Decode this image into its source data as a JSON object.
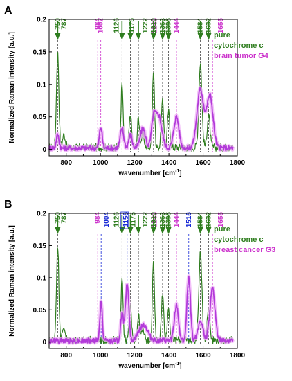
{
  "chart_data": [
    {
      "type": "line",
      "panel": "A",
      "xlabel": "wavenumber [cm",
      "xlabel_sup": "-1",
      "xlabel_end": "]",
      "ylabel": "Normalized Raman intensity [a.u.]",
      "xlim": [
        700,
        1800
      ],
      "ylim": [
        -0.01,
        0.2
      ],
      "xticks": [
        800,
        1000,
        1200,
        1400,
        1600,
        1800
      ],
      "yticks": [
        0,
        0.05,
        0.1,
        0.15,
        0.2
      ],
      "ytick_labels": [
        "0",
        "0.05",
        "0.1",
        "0.15",
        "0.2"
      ],
      "legend": [
        "pure",
        "cytochrome  c",
        "brain tumor G4"
      ],
      "colors": {
        "cytochrome": "#2e7d1e",
        "tissue": "#b23ad9",
        "tissue_shadow": "#f0b4f8",
        "accent_label": "#cc33cc",
        "blue": "#1a2bd6"
      },
      "peaks": [
        {
          "x": 750,
          "label": "750",
          "color": "green",
          "arrow": true,
          "offset": 0
        },
        {
          "x": 787,
          "label": "787",
          "color": "green",
          "arrow": false,
          "offset": 0
        },
        {
          "x": 984,
          "label": "984",
          "color": "magenta",
          "arrow": false,
          "offset": 0
        },
        {
          "x": 1002,
          "label": "1002",
          "color": "magenta",
          "arrow": false,
          "offset": 0
        },
        {
          "x": 1126,
          "label": "1126",
          "color": "green",
          "arrow": true,
          "offset": -8
        },
        {
          "x": 1175,
          "label": "1175",
          "color": "green",
          "arrow": true,
          "offset": 2
        },
        {
          "x": 1222,
          "label": "1222",
          "color": "green",
          "arrow": true,
          "offset": 10
        },
        {
          "x": 1248,
          "label": "1248",
          "color": "magenta",
          "arrow": false,
          "offset": 17
        },
        {
          "x": 1310,
          "label": "1310",
          "color": "green",
          "arrow": true,
          "offset": 0
        },
        {
          "x": 1363,
          "label": "1363",
          "color": "green",
          "arrow": true,
          "offset": 0
        },
        {
          "x": 1398,
          "label": "1398",
          "color": "green",
          "arrow": true,
          "offset": 0
        },
        {
          "x": 1444,
          "label": "1444",
          "color": "magenta",
          "arrow": false,
          "offset": 0
        },
        {
          "x": 1584,
          "label": "1584",
          "color": "green",
          "arrow": true,
          "offset": 0
        },
        {
          "x": 1632,
          "label": "1632",
          "color": "green",
          "arrow": true,
          "offset": 0
        },
        {
          "x": 1655,
          "label": "1655",
          "color": "magenta",
          "arrow": false,
          "offset": 12
        }
      ],
      "series": [
        {
          "name": "pure cytochrome c",
          "color": "#2e7d1e",
          "baseline": 0.003,
          "bands": [
            [
              750,
              0.145,
              7
            ],
            [
              787,
              0.02,
              8
            ],
            [
              1126,
              0.098,
              6
            ],
            [
              1175,
              0.05,
              7
            ],
            [
              1222,
              0.045,
              6
            ],
            [
              1248,
              0.02,
              8
            ],
            [
              1310,
              0.12,
              6
            ],
            [
              1363,
              0.07,
              7
            ],
            [
              1398,
              0.055,
              7
            ],
            [
              1584,
              0.13,
              9
            ],
            [
              1632,
              0.05,
              8
            ]
          ],
          "noise": 0.006
        },
        {
          "name": "brain tumor G4",
          "color": "#b23ad9",
          "baseline": 0.002,
          "bands": [
            [
              750,
              0.02,
              8
            ],
            [
              1002,
              0.032,
              8
            ],
            [
              1126,
              0.03,
              10
            ],
            [
              1175,
              0.02,
              10
            ],
            [
              1248,
              0.03,
              15
            ],
            [
              1310,
              0.04,
              12
            ],
            [
              1340,
              0.05,
              18
            ],
            [
              1444,
              0.048,
              15
            ],
            [
              1584,
              0.09,
              20
            ],
            [
              1640,
              0.08,
              18
            ]
          ],
          "noise": 0.004
        }
      ]
    },
    {
      "type": "line",
      "panel": "B",
      "xlabel": "wavenumber [cm",
      "xlabel_sup": "-1",
      "xlabel_end": "]",
      "ylabel": "Normalized Raman intensity [a.u.]",
      "xlim": [
        700,
        1800
      ],
      "ylim": [
        -0.01,
        0.2
      ],
      "xticks": [
        800,
        1000,
        1200,
        1400,
        1600,
        1800
      ],
      "yticks": [
        0,
        0.05,
        0.1,
        0.15,
        0.2
      ],
      "ytick_labels": [
        "0",
        "0.05",
        "0.1",
        "0.15",
        "0.2"
      ],
      "legend": [
        "pure",
        "cytochrome  c",
        "breast cancer G3"
      ],
      "colors": {
        "cytochrome": "#2e7d1e",
        "tissue": "#b23ad9",
        "tissue_shadow": "#f0b4f8",
        "accent_label": "#cc33cc",
        "blue": "#1a2bd6"
      },
      "peaks": [
        {
          "x": 750,
          "label": "750",
          "color": "green",
          "arrow": true,
          "offset": 0
        },
        {
          "x": 787,
          "label": "787",
          "color": "green",
          "arrow": false,
          "offset": 0
        },
        {
          "x": 984,
          "label": "984",
          "color": "magenta",
          "arrow": false,
          "offset": 0
        },
        {
          "x": 1004,
          "label": "1004",
          "color": "blue",
          "arrow": false,
          "offset": 8
        },
        {
          "x": 1126,
          "label": "1126",
          "color": "green",
          "arrow": true,
          "offset": -8
        },
        {
          "x": 1156,
          "label": "1156",
          "color": "blue",
          "arrow": false,
          "offset": -2,
          "boxed": true
        },
        {
          "x": 1175,
          "label": "1175",
          "color": "green",
          "arrow": true,
          "offset": 4
        },
        {
          "x": 1222,
          "label": "1222",
          "color": "green",
          "arrow": true,
          "offset": 10
        },
        {
          "x": 1248,
          "label": "1248",
          "color": "magenta",
          "arrow": false,
          "offset": 17
        },
        {
          "x": 1310,
          "label": "1310",
          "color": "green",
          "arrow": true,
          "offset": 0
        },
        {
          "x": 1363,
          "label": "1363",
          "color": "green",
          "arrow": true,
          "offset": 0
        },
        {
          "x": 1398,
          "label": "1398",
          "color": "green",
          "arrow": true,
          "offset": 0
        },
        {
          "x": 1444,
          "label": "1444",
          "color": "magenta",
          "arrow": false,
          "offset": 0
        },
        {
          "x": 1516,
          "label": "1516",
          "color": "blue",
          "arrow": false,
          "offset": 0
        },
        {
          "x": 1584,
          "label": "1584",
          "color": "green",
          "arrow": true,
          "offset": 0
        },
        {
          "x": 1632,
          "label": "1632",
          "color": "green",
          "arrow": true,
          "offset": 0
        },
        {
          "x": 1655,
          "label": "1655",
          "color": "magenta",
          "arrow": false,
          "offset": 12
        }
      ],
      "series": [
        {
          "name": "pure cytochrome c",
          "color": "#2e7d1e",
          "baseline": 0.003,
          "bands": [
            [
              750,
              0.145,
              7
            ],
            [
              787,
              0.02,
              8
            ],
            [
              1126,
              0.1,
              6
            ],
            [
              1175,
              0.05,
              7
            ],
            [
              1222,
              0.04,
              6
            ],
            [
              1248,
              0.02,
              8
            ],
            [
              1310,
              0.12,
              6
            ],
            [
              1363,
              0.07,
              7
            ],
            [
              1398,
              0.05,
              7
            ],
            [
              1584,
              0.135,
              9
            ],
            [
              1632,
              0.05,
              8
            ]
          ],
          "noise": 0.006
        },
        {
          "name": "breast cancer G3",
          "color": "#b23ad9",
          "baseline": 0.002,
          "bands": [
            [
              1004,
              0.06,
              7
            ],
            [
              1156,
              0.09,
              10
            ],
            [
              1126,
              0.04,
              8
            ],
            [
              1250,
              0.025,
              25
            ],
            [
              1444,
              0.055,
              12
            ],
            [
              1516,
              0.1,
              10
            ],
            [
              1584,
              0.03,
              15
            ],
            [
              1655,
              0.08,
              15
            ]
          ],
          "noise": 0.004
        }
      ]
    }
  ]
}
